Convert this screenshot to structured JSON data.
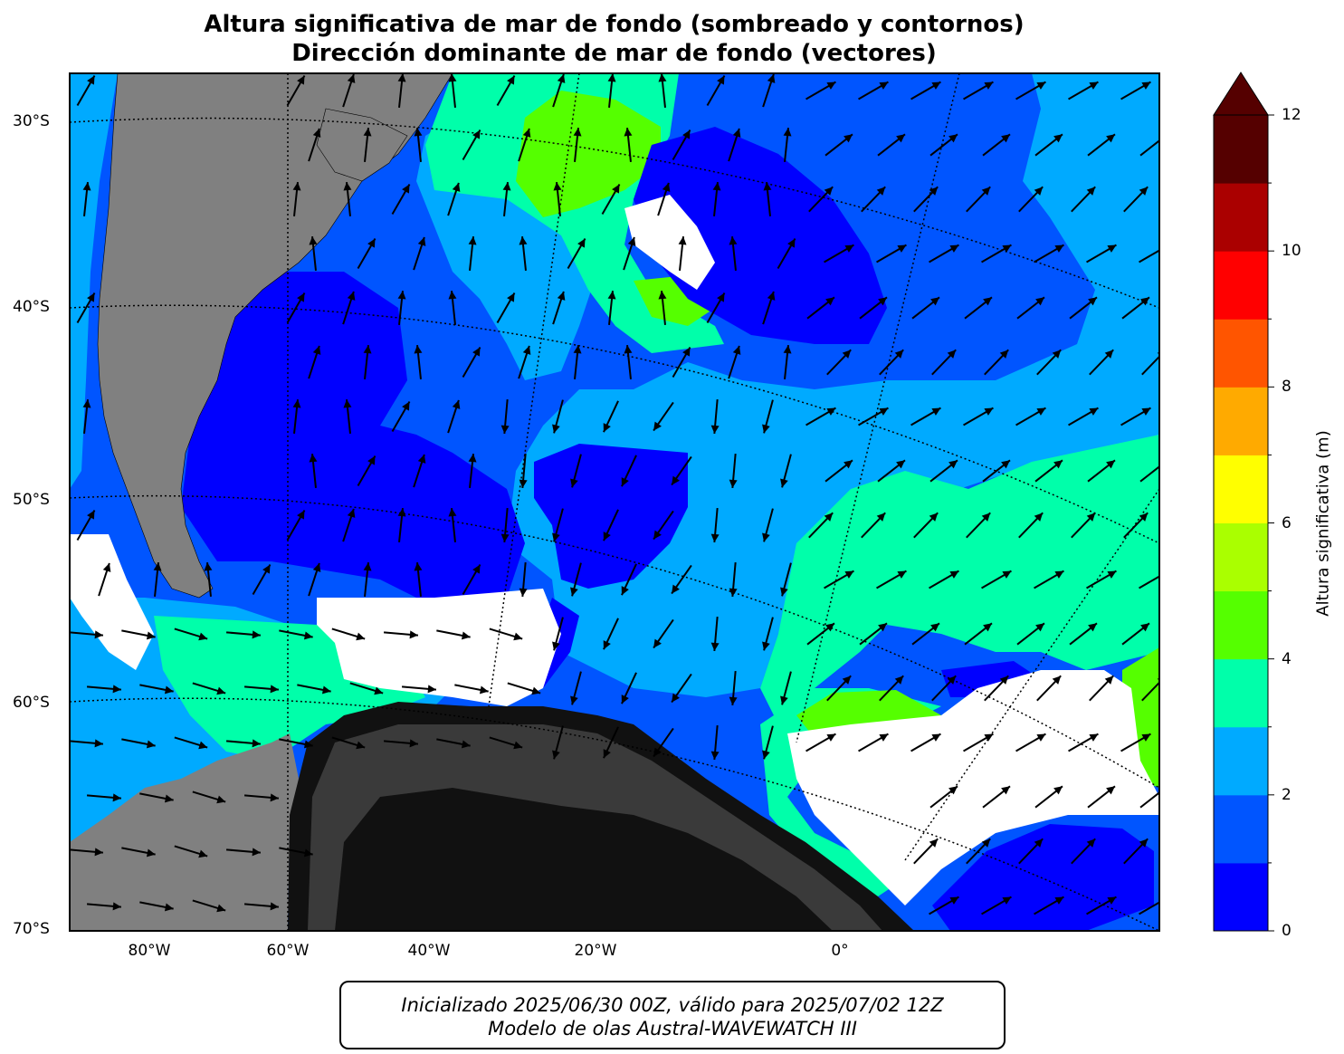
{
  "title": {
    "line1": "Altura significativa de mar de fondo (sombreado y contornos)",
    "line2": "Dirección dominante de mar de fondo (vectores)"
  },
  "map": {
    "lat_labels": [
      "30°S",
      "40°S",
      "50°S",
      "60°S",
      "70°S"
    ],
    "lon_labels": [
      "80°W",
      "60°W",
      "40°W",
      "20°W",
      "0°"
    ]
  },
  "colorbar": {
    "label": "Altura significativa (m)",
    "ticks": [
      "0",
      "2",
      "4",
      "6",
      "8",
      "10",
      "12"
    ],
    "levels": [
      0,
      1,
      2,
      3,
      4,
      5,
      6,
      7,
      8,
      9,
      10,
      11,
      12
    ],
    "colors": [
      "#0000ff",
      "#0055ff",
      "#00aaff",
      "#00ffaa",
      "#55ff00",
      "#aaff00",
      "#ffff00",
      "#ffaa00",
      "#ff5500",
      "#ff0000",
      "#aa0000",
      "#550000"
    ],
    "extend": "max"
  },
  "colors": {
    "land": "#808080",
    "antarctica_dark": "#111111",
    "sea_ice": "#ffffff"
  },
  "footer": {
    "line1": "Inicializado 2025/06/30 00Z, válido para 2025/07/02 12Z",
    "line2": "Modelo de olas Austral-WAVEWATCH III"
  }
}
